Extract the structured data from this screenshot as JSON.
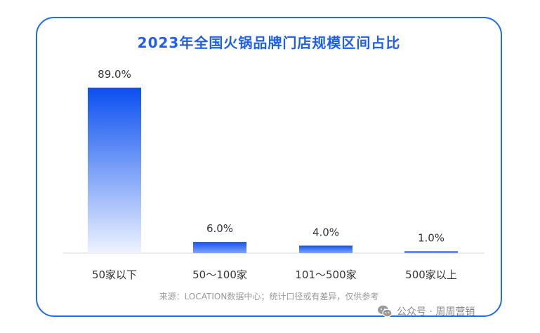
{
  "chart_data": {
    "type": "bar",
    "title": "2023年全国火锅品牌门店规模区间占比",
    "categories": [
      "50家以下",
      "50～100家",
      "101～500家",
      "500家以上"
    ],
    "values": [
      89.0,
      6.0,
      4.0,
      1.0
    ],
    "value_labels": [
      "89.0%",
      "6.0%",
      "4.0%",
      "1.0%"
    ],
    "ylim": [
      0,
      100
    ],
    "grid": false,
    "colors": {
      "bar_top": "#0a4ff0",
      "bar_bottom": "#eef3ff",
      "title": "#1e5ff0",
      "border": "#1e6bf0"
    }
  },
  "source": "来源：LOCATION数据中心；统计口径或有差异，仅供参考",
  "watermark": {
    "icon": "wechat-icon",
    "text": "公众号 · 周周营销"
  }
}
